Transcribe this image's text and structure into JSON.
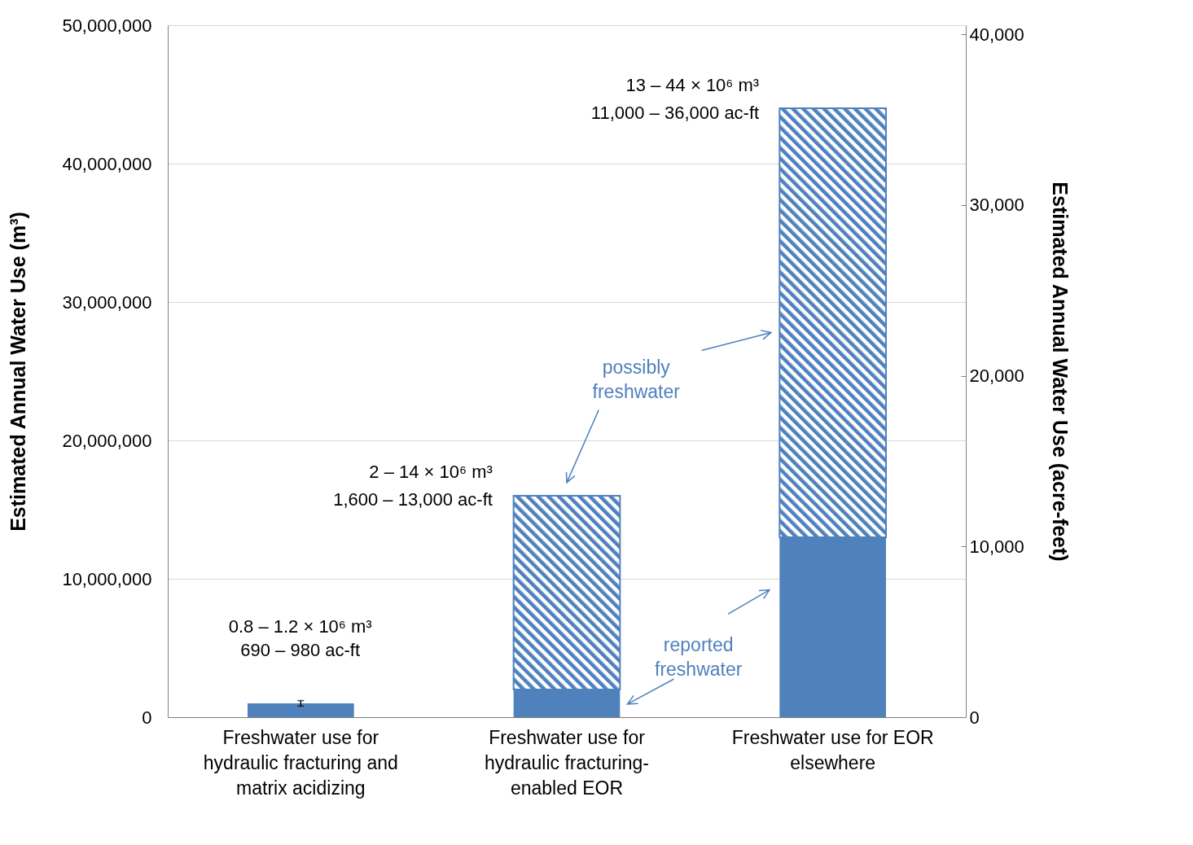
{
  "chart_data": {
    "type": "bar",
    "stacked": true,
    "ylabel": "Estimated Annual Water Use  (m³)",
    "y2label": "Estimated Annual Water Use  (acre-feet)",
    "categories": [
      "Freshwater use for hydraulic fracturing and matrix acidizing",
      "Freshwater use for hydraulic fracturing-enabled EOR",
      "Freshwater use for EOR elsewhere"
    ],
    "series": [
      {
        "color": "#4f81bd",
        "values": [
          1000000,
          2000000,
          13000000
        ],
        "errors": [
          [
            800000,
            1200000
          ],
          null,
          null
        ]
      },
      {
        "color": "#4f81bd",
        "values": [
          null,
          14000000,
          31000000
        ]
      }
    ],
    "ylim": [
      0,
      50000000
    ],
    "yticks": [
      0,
      {
        "value": 10000000,
        "label": "10,000,000"
      },
      {
        "value": 20000000,
        "label": "20,000,000"
      },
      {
        "value": 30000000,
        "label": "30,000,000"
      },
      {
        "value": 40000000,
        "label": "40,000,000"
      },
      {
        "value": 50000000,
        "label": "50,000,000"
      }
    ],
    "y2lim": [
      0,
      40535
    ],
    "y2ticks": [
      0,
      {
        "value": 10000,
        "label": "10,000"
      },
      {
        "value": 20000,
        "label": "20,000"
      },
      {
        "value": 30000,
        "label": "30,000"
      },
      {
        "value": 40000,
        "label": "40,000"
      }
    ],
    "grid": "y",
    "annotations": [
      "0.8 – 1.2 × 10⁶ m³",
      "690 – 980 ac-ft",
      "2 – 14 × 10⁶ m³",
      "1,600 – 13,000 ac-ft",
      "13 – 44 × 10⁶ m³",
      "11,000 – 36,000 ac-ft",
      "possibly freshwater",
      "reported freshwater"
    ]
  }
}
